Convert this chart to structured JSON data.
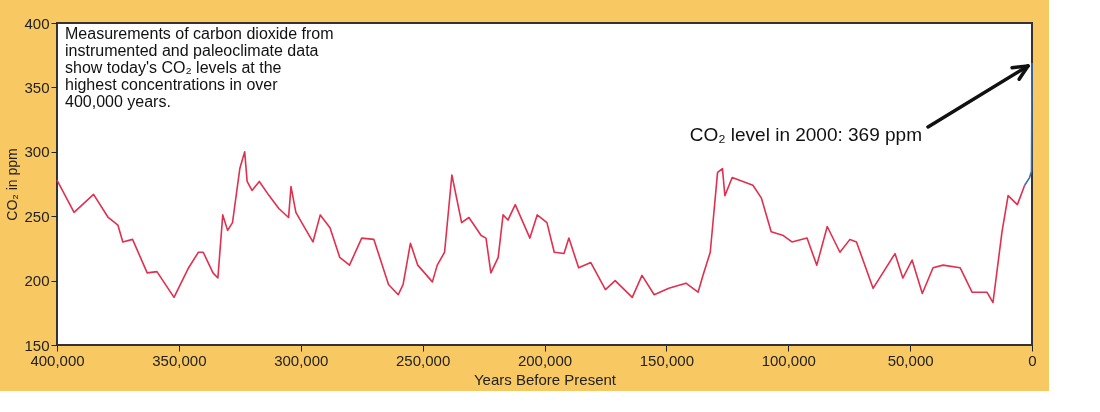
{
  "chart_data": {
    "type": "line",
    "xlabel": "Years Before Present",
    "ylabel": "CO₂ in ppm",
    "xlim": [
      400000,
      0
    ],
    "ylim": [
      150,
      400
    ],
    "xticks": [
      {
        "value": 400000,
        "label": "400,000"
      },
      {
        "value": 350000,
        "label": "350,000"
      },
      {
        "value": 300000,
        "label": "300,000"
      },
      {
        "value": 250000,
        "label": "250,000"
      },
      {
        "value": 200000,
        "label": "200,000"
      },
      {
        "value": 150000,
        "label": "150,000"
      },
      {
        "value": 100000,
        "label": "100,000"
      },
      {
        "value": 50000,
        "label": "50,000"
      },
      0
    ],
    "yticks": [
      150,
      200,
      250,
      300,
      350,
      400
    ],
    "grid": false,
    "marker": "none",
    "line_style": "solid",
    "series": [
      {
        "color": "#e0304f",
        "x": [
          400000,
          393000,
          385000,
          379000,
          375000,
          373000,
          369000,
          363000,
          359000,
          352000,
          346000,
          342000,
          340000,
          336000,
          334000,
          332000,
          330000,
          328000,
          325000,
          323000,
          322000,
          320000,
          317000,
          313000,
          309000,
          305000,
          304000,
          302000,
          299000,
          295000,
          292000,
          288000,
          284000,
          280000,
          275000,
          270000,
          264000,
          260000,
          258000,
          255000,
          252000,
          246000,
          244000,
          241000,
          238000,
          234000,
          231000,
          226000,
          224000,
          222000,
          219000,
          217000,
          215000,
          212000,
          206000,
          203000,
          199000,
          196000,
          192000,
          190000,
          186000,
          181000,
          175000,
          171000,
          164000,
          160000,
          155000,
          149000,
          142000,
          137000,
          135000,
          132000,
          129000,
          127000,
          126000,
          123000,
          114500,
          111000,
          107000,
          102000,
          98500,
          92300,
          88300,
          84000,
          78800,
          74700,
          72000,
          65200,
          56200,
          53000,
          49200,
          45000,
          40600,
          36500,
          29500,
          24600,
          18500,
          16000,
          12300,
          9800,
          6000,
          3000
        ],
        "values": [
          278,
          253,
          267,
          249,
          243,
          230,
          232,
          206,
          207,
          187,
          210,
          222,
          222,
          206,
          202,
          251,
          239,
          245,
          287,
          300,
          277,
          270,
          277,
          266,
          256,
          249,
          273,
          253,
          243,
          230,
          251,
          241,
          218,
          212,
          233,
          232,
          197,
          189,
          197,
          229,
          212,
          199,
          212,
          222,
          282,
          245,
          249,
          235,
          233,
          206,
          218,
          251,
          247,
          259,
          233,
          251,
          245,
          222,
          221,
          233,
          210,
          214,
          193,
          200,
          187,
          204,
          189,
          194,
          198,
          191,
          204,
          222,
          284,
          287,
          266,
          280,
          274,
          264,
          238,
          235,
          230,
          233,
          212,
          242,
          222,
          232,
          230,
          194,
          221,
          202,
          216,
          190,
          210,
          212,
          210,
          191,
          191,
          183,
          238,
          266,
          259,
          274
        ]
      },
      {
        "color": "#3a6fb0",
        "x": [
          3000,
          1000,
          200,
          0
        ],
        "values": [
          274,
          280,
          285,
          369
        ]
      }
    ],
    "annotations": [
      "Measurements of carbon dioxide from instrumented and paleoclimate data show today's CO₂ levels at the highest concentrations in over 400,000 years.",
      {
        "text": "CO₂ level in 2000: 369 ppm",
        "x": 0,
        "y": 369
      }
    ]
  }
}
